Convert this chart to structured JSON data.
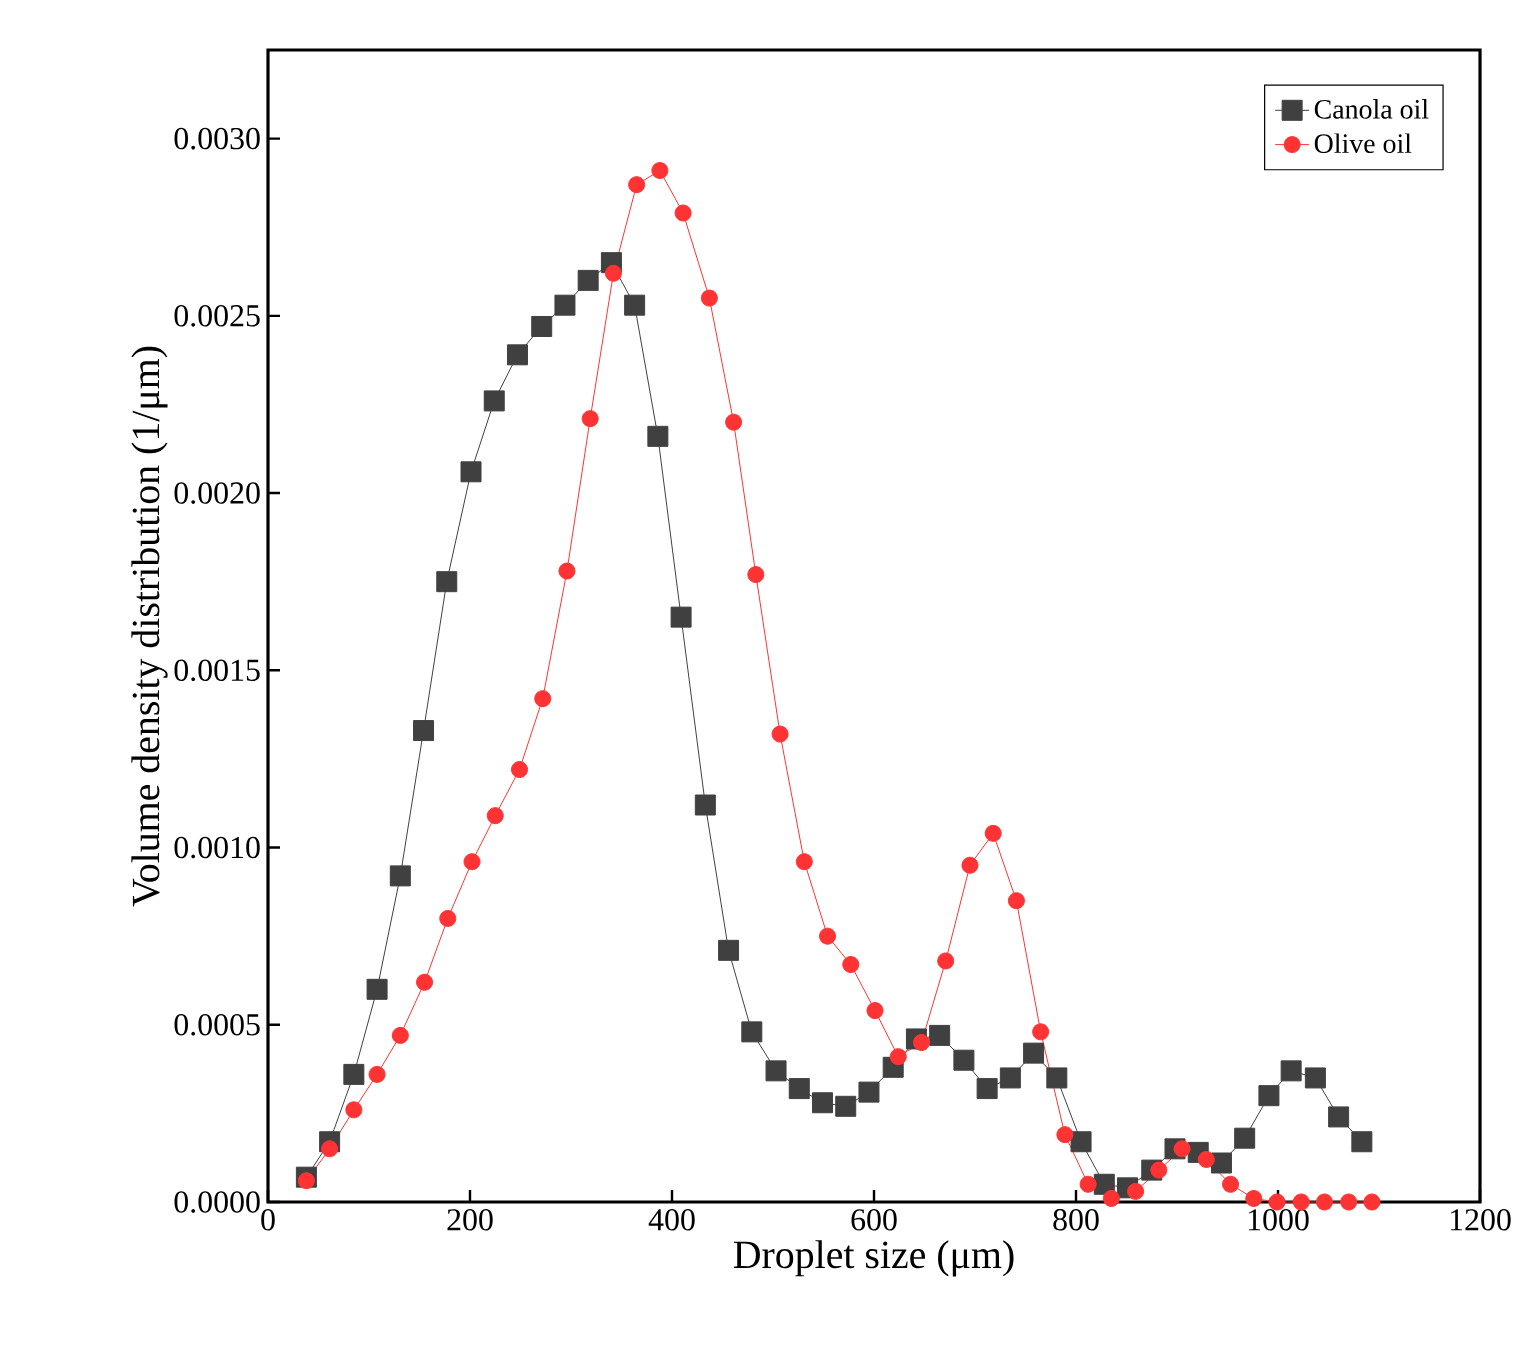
{
  "chart_data": {
    "type": "line",
    "xlabel": "Droplet size (μm)",
    "ylabel": "Volume density distribution (1/μm)",
    "xlim": [
      0,
      1200
    ],
    "xticks": [
      0,
      200,
      400,
      600,
      800,
      1000,
      1200
    ],
    "ylim": [
      0,
      0.00325
    ],
    "yticks": [
      {
        "value": 0,
        "label": "0.0000"
      },
      {
        "value": 0.0005,
        "label": "0.0005"
      },
      {
        "value": 0.001,
        "label": "0.0010"
      },
      {
        "value": 0.0015,
        "label": "0.0015"
      },
      {
        "value": 0.002,
        "label": "0.0020"
      },
      {
        "value": 0.0025,
        "label": "0.0025"
      },
      {
        "value": 0.003,
        "label": "0.0030"
      }
    ],
    "grid": false,
    "legend": "top right",
    "series": [
      {
        "name": "Canola oil",
        "color": "#404040",
        "marker": "square",
        "x": [
          38,
          61,
          85,
          108,
          131,
          154,
          177,
          201,
          224,
          247,
          271,
          294,
          317,
          340,
          363,
          386,
          409,
          433,
          456,
          479,
          503,
          526,
          549,
          572,
          595,
          619,
          642,
          665,
          689,
          712,
          735,
          758,
          781,
          805,
          828,
          851,
          875,
          898,
          921,
          944,
          967,
          991,
          1013,
          1037,
          1060,
          1083
        ],
        "values": [
          7e-05,
          0.00017,
          0.00036,
          0.0006,
          0.00092,
          0.00133,
          0.00175,
          0.00206,
          0.00226,
          0.00239,
          0.00247,
          0.00253,
          0.0026,
          0.00265,
          0.00253,
          0.00216,
          0.00165,
          0.00112,
          0.00071,
          0.00048,
          0.00037,
          0.00032,
          0.00028,
          0.00027,
          0.00031,
          0.00038,
          0.00046,
          0.00047,
          0.0004,
          0.00032,
          0.00035,
          0.00042,
          0.00035,
          0.00017,
          5e-05,
          4e-05,
          9e-05,
          0.00015,
          0.00014,
          0.00011,
          0.00018,
          0.0003,
          0.00037,
          0.00035,
          0.00024,
          0.00017
        ]
      },
      {
        "name": "Olive oil",
        "color": "#ff3333",
        "marker": "circle",
        "x": [
          38,
          61,
          85,
          108,
          131,
          155,
          178,
          202,
          225,
          249,
          272,
          296,
          319,
          342,
          365,
          388,
          411,
          437,
          461,
          483,
          507,
          531,
          554,
          577,
          601,
          624,
          647,
          671,
          695,
          718,
          741,
          765,
          789,
          812,
          835,
          859,
          882,
          905,
          929,
          953,
          976,
          999,
          1023,
          1046,
          1070,
          1093
        ],
        "values": [
          6e-05,
          0.00015,
          0.00026,
          0.00036,
          0.00047,
          0.00062,
          0.0008,
          0.00096,
          0.00109,
          0.00122,
          0.00142,
          0.00178,
          0.00221,
          0.00262,
          0.00287,
          0.00291,
          0.00279,
          0.00255,
          0.0022,
          0.00177,
          0.00132,
          0.00096,
          0.00075,
          0.00067,
          0.00054,
          0.00041,
          0.00045,
          0.00068,
          0.00095,
          0.00104,
          0.00085,
          0.00048,
          0.00019,
          5e-05,
          1e-05,
          3e-05,
          9e-05,
          0.00015,
          0.00012,
          5e-05,
          1e-05,
          0,
          0,
          0,
          0,
          0
        ]
      }
    ]
  }
}
